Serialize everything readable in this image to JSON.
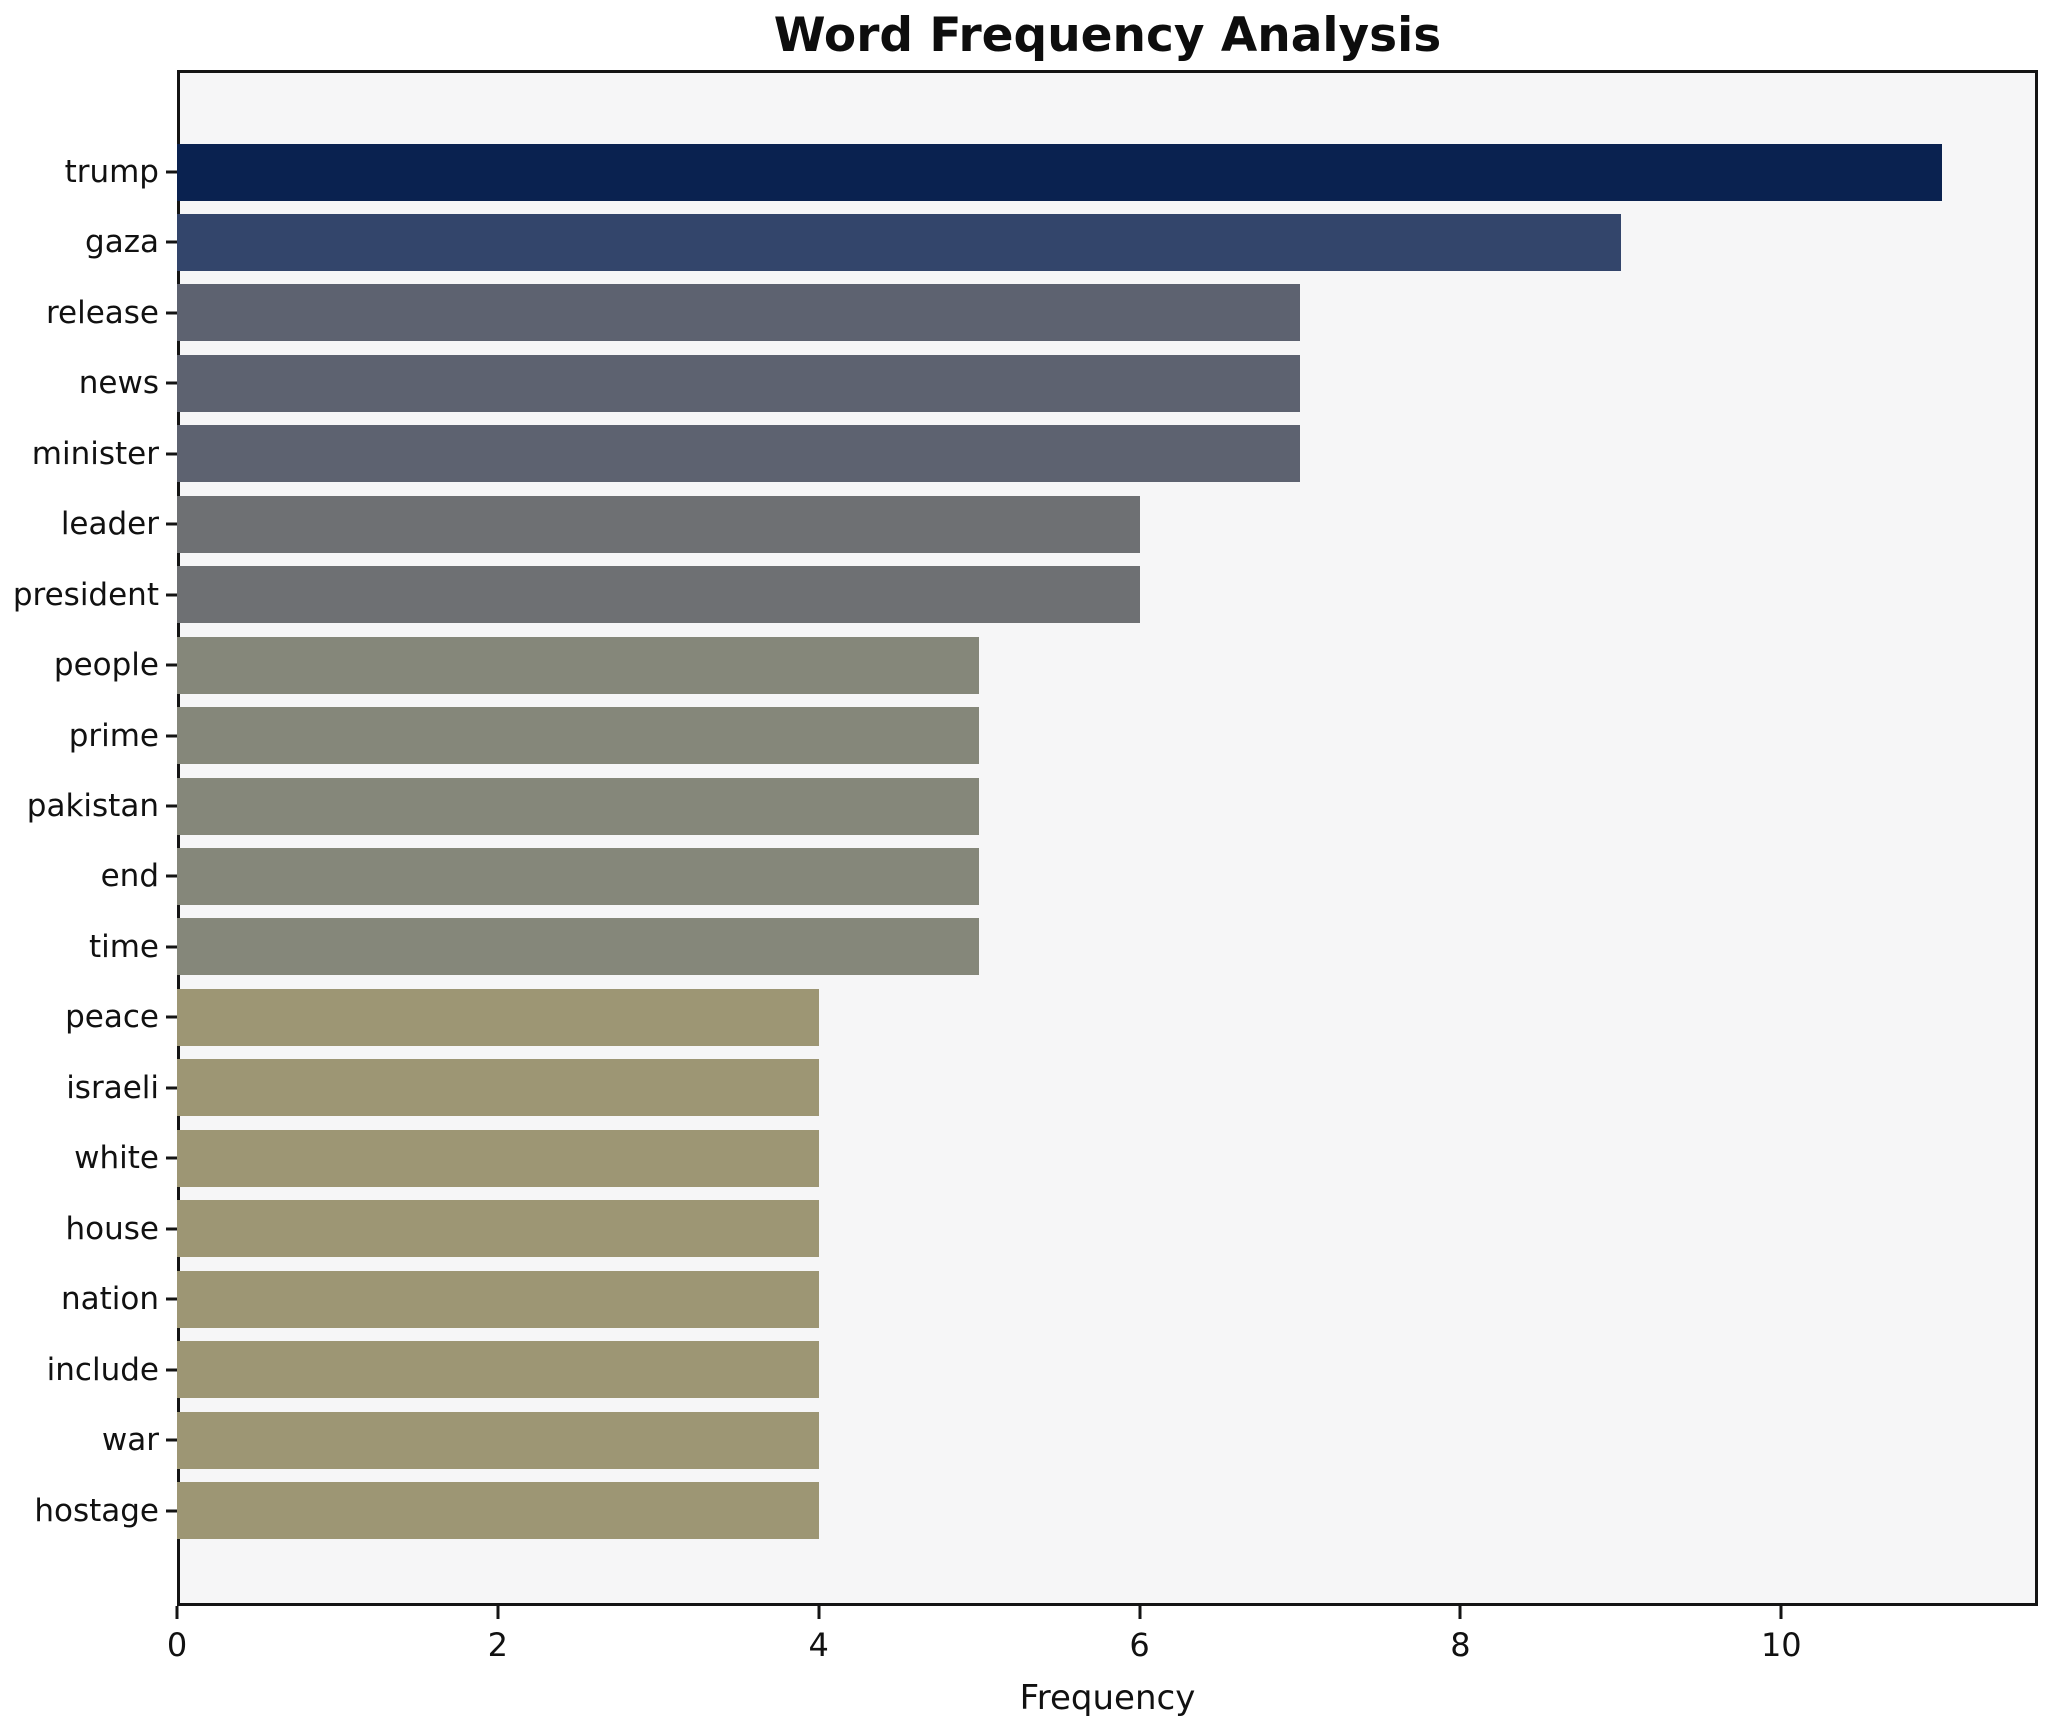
{
  "chart_data": {
    "type": "bar",
    "orientation": "horizontal",
    "title": "Word Frequency Analysis",
    "xlabel": "Frequency",
    "ylabel": "",
    "grid": false,
    "legend": null,
    "categories": [
      "trump",
      "gaza",
      "release",
      "news",
      "minister",
      "leader",
      "president",
      "people",
      "prime",
      "pakistan",
      "end",
      "time",
      "peace",
      "israeli",
      "white",
      "house",
      "nation",
      "include",
      "war",
      "hostage"
    ],
    "values": [
      11,
      9,
      7,
      7,
      7,
      6,
      6,
      5,
      5,
      5,
      5,
      5,
      4,
      4,
      4,
      4,
      4,
      4,
      4,
      4
    ],
    "xlim": [
      0,
      11.6
    ],
    "x_ticks": [
      0,
      2,
      4,
      6,
      8,
      10
    ],
    "value_colors": {
      "11": "#0a2250",
      "9": "#33456b",
      "7": "#5d6270",
      "6": "#6e7073",
      "5": "#85877a",
      "4": "#9d9674"
    },
    "plot_background": "#f6f6f7",
    "figure_background": "#ffffff",
    "spine_color": "#141414",
    "text_color": "#111111"
  }
}
